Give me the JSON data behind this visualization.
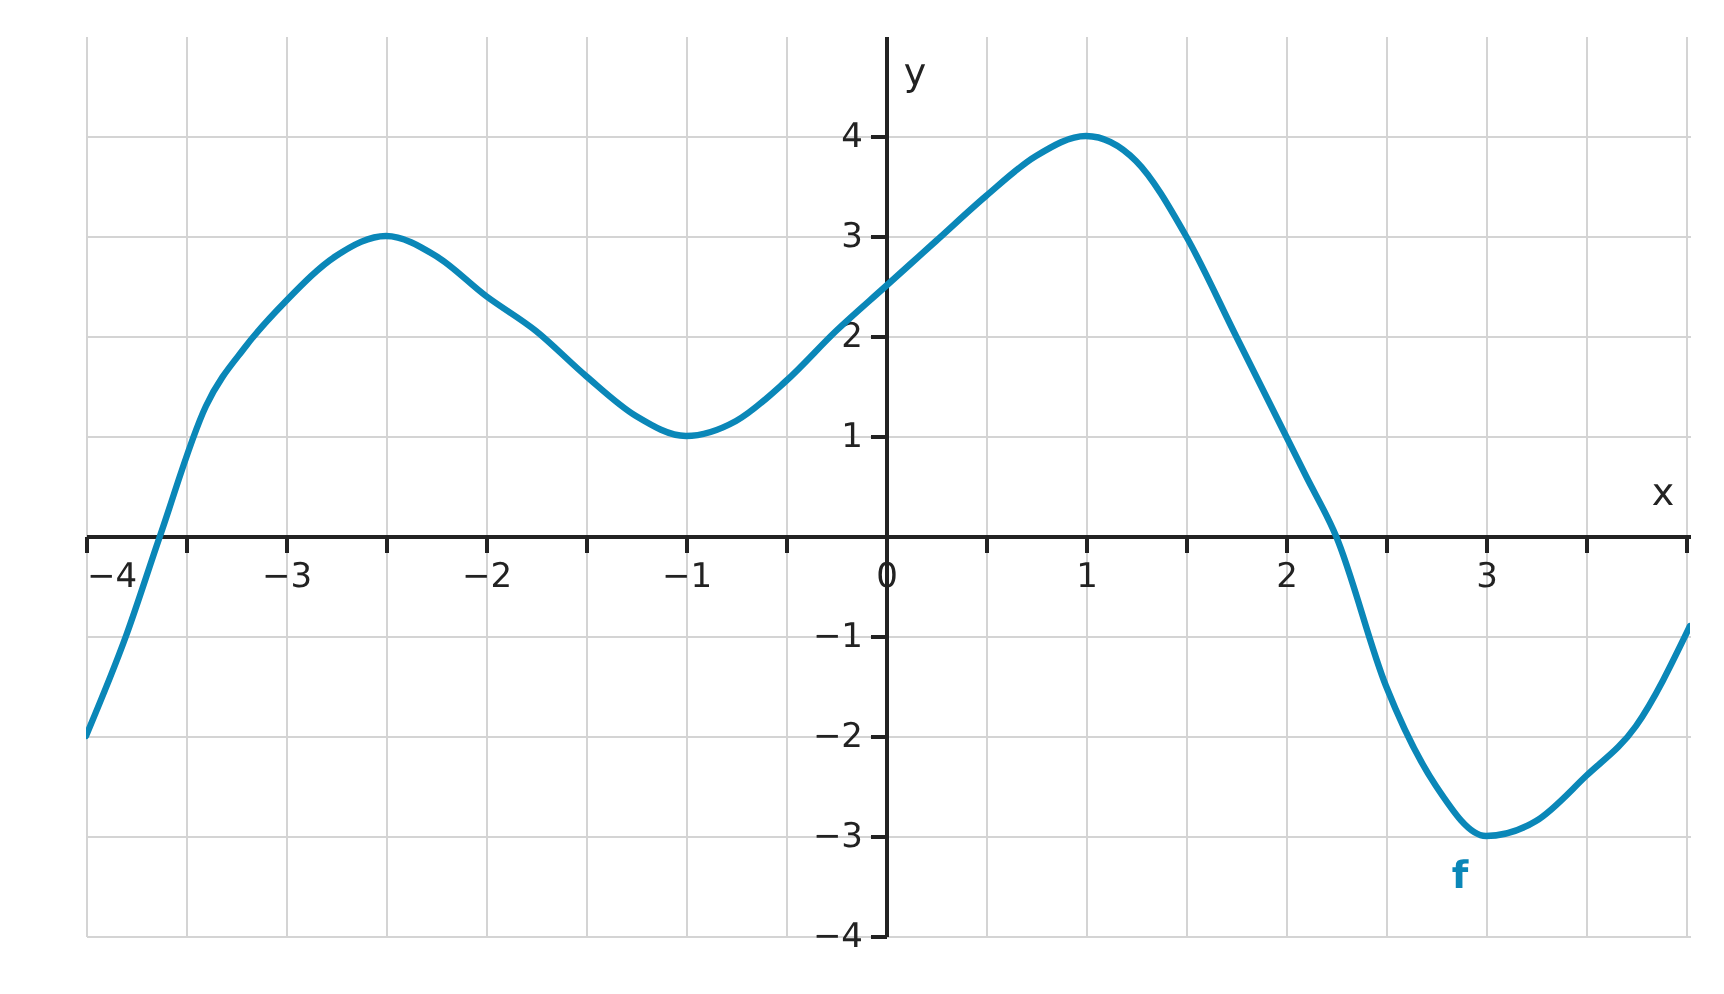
{
  "chart_data": {
    "type": "line",
    "xlabel": "x",
    "ylabel": "y",
    "xlim": [
      -4,
      4.02
    ],
    "ylim": [
      -4,
      5
    ],
    "xticks": [
      {
        "value": -4,
        "label": "−4"
      },
      {
        "value": -3.5,
        "label": null
      },
      {
        "value": -3,
        "label": "−3"
      },
      {
        "value": -2.5,
        "label": null
      },
      {
        "value": -2,
        "label": "−2"
      },
      {
        "value": -1.5,
        "label": null
      },
      {
        "value": -1,
        "label": "−1"
      },
      {
        "value": -0.5,
        "label": null
      },
      {
        "value": 0,
        "label": "0"
      },
      {
        "value": 0.5,
        "label": null
      },
      1,
      {
        "value": 1.5,
        "label": null
      },
      2,
      {
        "value": 2.5,
        "label": null
      },
      3,
      {
        "value": 3.5,
        "label": null
      },
      {
        "value": 4,
        "label": null
      }
    ],
    "yticks": [
      {
        "value": -4,
        "label": "−4"
      },
      {
        "value": -3,
        "label": "−3"
      },
      {
        "value": -2,
        "label": "−2"
      },
      {
        "value": -1,
        "label": "−1"
      },
      {
        "value": 0,
        "label": null
      },
      1,
      2,
      3,
      4
    ],
    "grid": true,
    "series": [
      {
        "color": "#0a87b8",
        "x": [
          -4,
          -3.8,
          -3.63,
          -3.4,
          -3.2,
          -3,
          -2.75,
          -2.5,
          -2.25,
          -2,
          -1.75,
          -1.5,
          -1.25,
          -1,
          -0.75,
          -0.5,
          -0.25,
          0,
          0.25,
          0.5,
          0.75,
          1,
          1.25,
          1.5,
          1.75,
          2,
          2.1,
          2.25,
          2.5,
          2.75,
          3,
          3.25,
          3.5,
          3.75,
          4.02
        ],
        "values": [
          -2,
          -1,
          0,
          1.3,
          1.9,
          2.35,
          2.8,
          3,
          2.8,
          2.4,
          2.05,
          1.6,
          1.2,
          1,
          1.15,
          1.55,
          2.05,
          2.5,
          2.95,
          3.4,
          3.8,
          4,
          3.75,
          3,
          2,
          1,
          0.6,
          0,
          -1.5,
          -2.5,
          -3,
          -2.85,
          -2.4,
          -1.9,
          -0.9
        ]
      }
    ],
    "annotations": [
      "f"
    ]
  }
}
